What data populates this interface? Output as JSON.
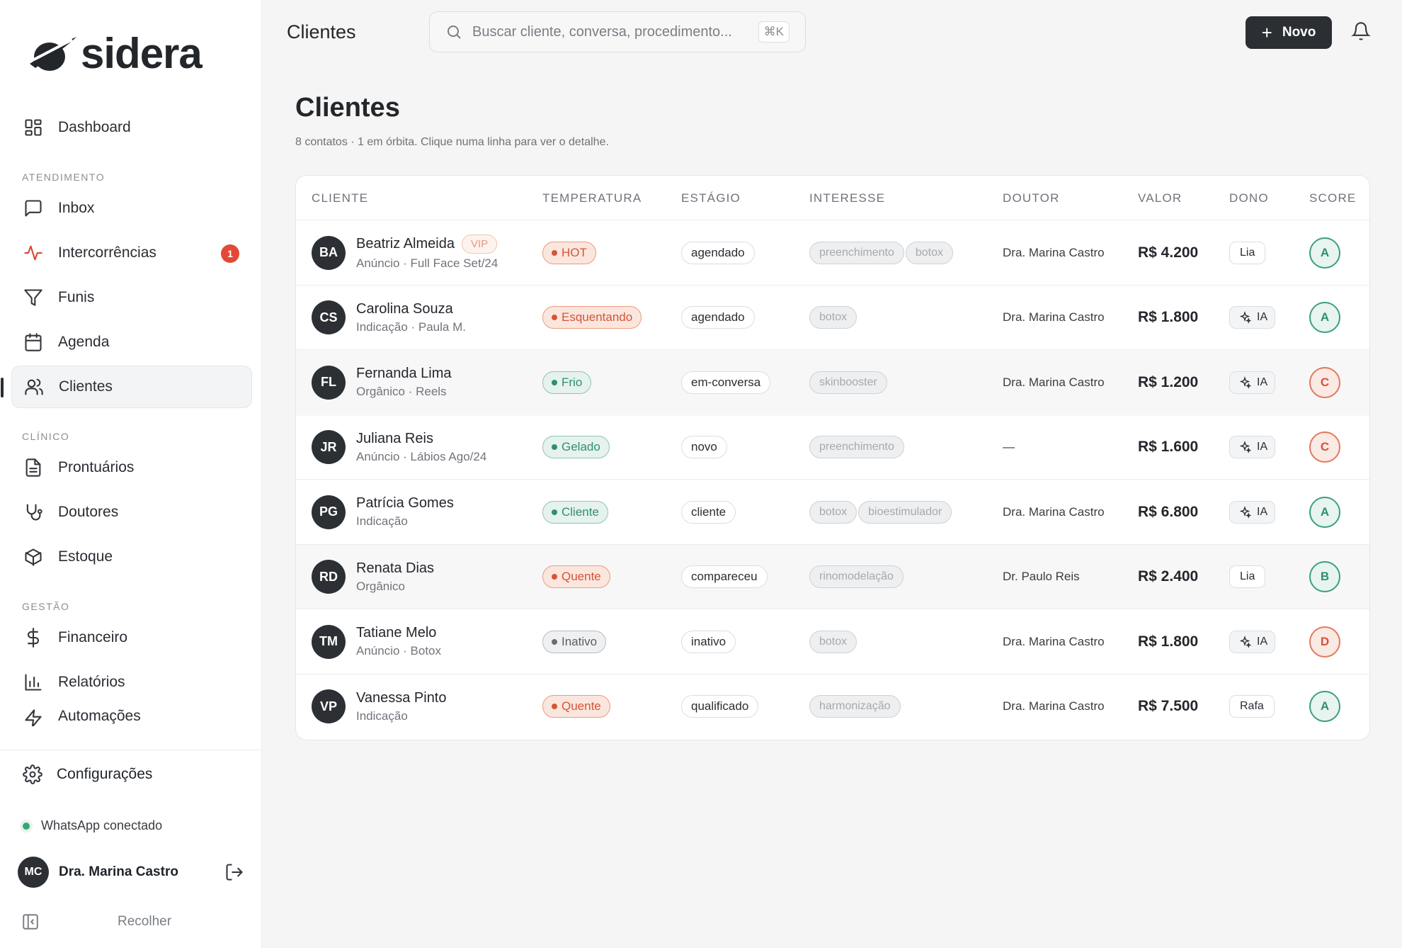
{
  "brand": {
    "name": "sidera"
  },
  "sidebar": {
    "dashboard": "Dashboard",
    "section_atendimento": "ATENDIMENTO",
    "inbox": "Inbox",
    "intercorrencias": "Intercorrências",
    "intercorrencias_badge": "1",
    "funis": "Funis",
    "agenda": "Agenda",
    "clientes": "Clientes",
    "section_clinico": "CLÍNICO",
    "prontuarios": "Prontuários",
    "doutores": "Doutores",
    "estoque": "Estoque",
    "section_gestao": "GESTÃO",
    "financeiro": "Financeiro",
    "relatorios": "Relatórios",
    "automacoes": "Automações",
    "configuracoes": "Configurações",
    "whatsapp_status": "WhatsApp conectado",
    "user_initials": "MC",
    "user_name": "Dra. Marina Castro",
    "collapse": "Recolher"
  },
  "topbar": {
    "title": "Clientes",
    "search_placeholder": "Buscar cliente, conversa, procedimento...",
    "search_shortcut": "⌘K",
    "new_button": "Novo"
  },
  "page": {
    "title": "Clientes",
    "subtitle": "8 contatos · 1 em órbita. Clique numa linha para ver o detalhe."
  },
  "table": {
    "headers": {
      "cliente": "CLIENTE",
      "temperatura": "TEMPERATURA",
      "estagio": "ESTÁGIO",
      "interesse": "INTERESSE",
      "doutor": "DOUTOR",
      "valor": "VALOR",
      "dono": "DONO",
      "score": "SCORE"
    },
    "rows": [
      {
        "initials": "BA",
        "name": "Beatriz Almeida",
        "vip": "VIP",
        "source": "Anúncio · Full Face Set/24",
        "temp": "HOT",
        "stage": "agendado",
        "interests": [
          "preenchimento",
          "botox"
        ],
        "doctor": "Dra. Marina Castro",
        "value": "R$ 4.200",
        "owner": "Lia",
        "score": "A"
      },
      {
        "initials": "CS",
        "name": "Carolina Souza",
        "source": "Indicação · Paula M.",
        "temp": "Esquentando",
        "stage": "agendado",
        "interests": [
          "botox"
        ],
        "doctor": "Dra. Marina Castro",
        "value": "R$ 1.800",
        "owner": "IA",
        "score": "A"
      },
      {
        "initials": "FL",
        "name": "Fernanda Lima",
        "source": "Orgânico · Reels",
        "temp": "Frio",
        "stage": "em-conversa",
        "interests": [
          "skinbooster"
        ],
        "doctor": "Dra. Marina Castro",
        "value": "R$ 1.200",
        "owner": "IA",
        "score": "C"
      },
      {
        "initials": "JR",
        "name": "Juliana Reis",
        "source": "Anúncio · Lábios Ago/24",
        "temp": "Gelado",
        "stage": "novo",
        "interests": [
          "preenchimento"
        ],
        "doctor": "—",
        "value": "R$ 1.600",
        "owner": "IA",
        "score": "C"
      },
      {
        "initials": "PG",
        "name": "Patrícia Gomes",
        "source": "Indicação",
        "temp": "Cliente",
        "stage": "cliente",
        "interests": [
          "botox",
          "bioestimulador"
        ],
        "doctor": "Dra. Marina Castro",
        "value": "R$ 6.800",
        "owner": "IA",
        "score": "A"
      },
      {
        "initials": "RD",
        "name": "Renata Dias",
        "source": "Orgânico",
        "temp": "Quente",
        "stage": "compareceu",
        "interests": [
          "rinomodelação"
        ],
        "doctor": "Dr. Paulo Reis",
        "value": "R$ 2.400",
        "owner": "Lia",
        "score": "B"
      },
      {
        "initials": "TM",
        "name": "Tatiane Melo",
        "source": "Anúncio · Botox",
        "temp": "Inativo",
        "stage": "inativo",
        "interests": [
          "botox"
        ],
        "doctor": "Dra. Marina Castro",
        "value": "R$ 1.800",
        "owner": "IA",
        "score": "D"
      },
      {
        "initials": "VP",
        "name": "Vanessa Pinto",
        "source": "Indicação",
        "temp": "Quente",
        "stage": "qualificado",
        "interests": [
          "harmonização"
        ],
        "doctor": "Dra. Marina Castro",
        "value": "R$ 7.500",
        "owner": "Rafa",
        "score": "A"
      }
    ]
  },
  "colors": {
    "accent": "#2b2e33",
    "hot": "#d2553a",
    "cold": "#2f8f71",
    "badge": "#e34936"
  },
  "icons": [
    "dashboard-icon",
    "inbox-icon",
    "activity-icon",
    "funnel-icon",
    "calendar-icon",
    "users-icon",
    "file-icon",
    "stethoscope-icon",
    "box-icon",
    "dollar-icon",
    "bar-chart-icon",
    "zap-icon",
    "gear-icon",
    "logout-icon",
    "sidebar-collapse-icon",
    "search-icon",
    "plus-icon",
    "bell-icon",
    "sparkle-icon"
  ]
}
